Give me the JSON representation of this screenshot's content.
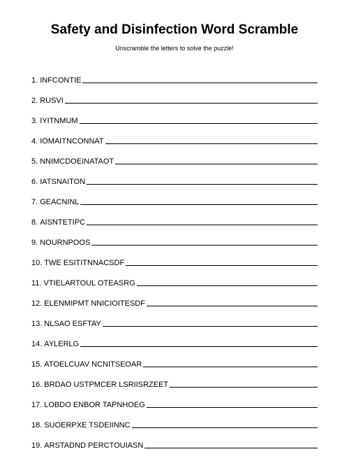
{
  "title": "Safety and Disinfection Word Scramble",
  "subtitle": "Unscramble the letters to solve the puzzle!",
  "title_fontsize": 19,
  "subtitle_fontsize": 9,
  "item_fontsize": 11,
  "text_color": "#000000",
  "background_color": "#ffffff",
  "line_color": "#000000",
  "items": [
    {
      "number": "1.",
      "word": "INFCONTIE"
    },
    {
      "number": "2.",
      "word": "RUSVI"
    },
    {
      "number": "3.",
      "word": "IYITNMUM"
    },
    {
      "number": "4.",
      "word": "IOMAITNCONNAT"
    },
    {
      "number": "5.",
      "word": "NNIMCDOEINATAOT"
    },
    {
      "number": "6.",
      "word": "IATSNAITON"
    },
    {
      "number": "7.",
      "word": "GEACNINL"
    },
    {
      "number": "8.",
      "word": "AISNTETIPC"
    },
    {
      "number": "9.",
      "word": "NOURNPOOS"
    },
    {
      "number": "10.",
      "word": "TWE ESITITNNACSDF"
    },
    {
      "number": "11.",
      "word": "VTIELARTOUL OTEASRG"
    },
    {
      "number": "12.",
      "word": "ELENMIPMT NNICIOITESDF"
    },
    {
      "number": "13.",
      "word": "NLSAO ESFTAY"
    },
    {
      "number": "14.",
      "word": "AYLERLG"
    },
    {
      "number": "15.",
      "word": "ATOELCUAV NCNITSEOAR"
    },
    {
      "number": "16.",
      "word": "BRDAO USTPMCER LSRIISRZEET"
    },
    {
      "number": "17.",
      "word": "LOBDO ENBOR TAPNHOEG"
    },
    {
      "number": "18.",
      "word": "SUOERPXE TSDEIINNC"
    },
    {
      "number": "19.",
      "word": "ARSTADND PERCTOUIASN"
    }
  ]
}
